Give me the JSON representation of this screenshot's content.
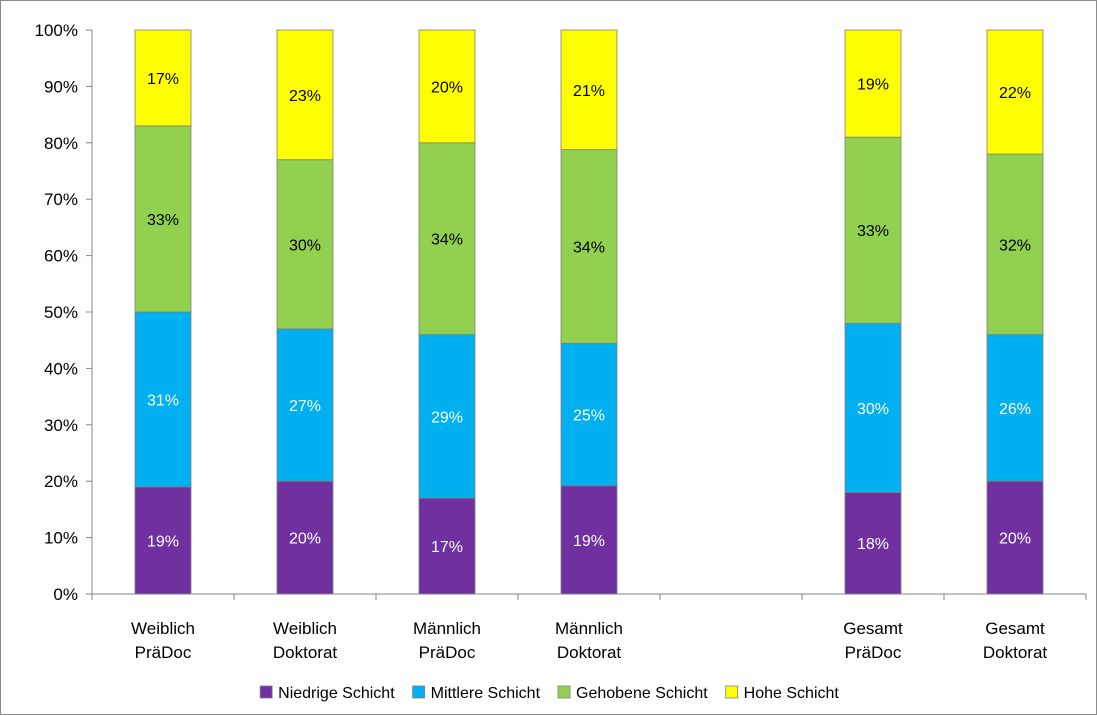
{
  "chart_data": {
    "type": "bar",
    "stacked": true,
    "percent_stacked": true,
    "categories": [
      [
        "Weiblich",
        "PräDoc"
      ],
      [
        "Weiblich",
        "Doktorat"
      ],
      [
        "Männlich",
        "PräDoc"
      ],
      [
        "Männlich",
        "Doktorat"
      ],
      [
        "",
        ""
      ],
      [
        "Gesamt",
        "PräDoc"
      ],
      [
        "Gesamt",
        "Doktorat"
      ]
    ],
    "series": [
      {
        "name": "Niedrige Schicht",
        "color": "#7030A0",
        "label_color": "#ffffff",
        "values": [
          19,
          20,
          17,
          19,
          null,
          18,
          20
        ],
        "labels": [
          "19%",
          "20%",
          "17%",
          "19%",
          "",
          "18%",
          "20%"
        ]
      },
      {
        "name": "Mittlere Schicht",
        "color": "#00B0F0",
        "label_color": "#ffffff",
        "values": [
          31,
          27,
          29,
          25,
          null,
          30,
          26
        ],
        "labels": [
          "31%",
          "27%",
          "29%",
          "25%",
          "",
          "30%",
          "26%"
        ]
      },
      {
        "name": "Gehobene Schicht",
        "color": "#92D050",
        "label_color": "#000000",
        "values": [
          33,
          30,
          34,
          34,
          null,
          33,
          32
        ],
        "labels": [
          "33%",
          "30%",
          "34%",
          "34%",
          "",
          "33%",
          "32%"
        ]
      },
      {
        "name": "Hohe Schicht",
        "color": "#FFFF00",
        "label_color": "#000000",
        "values": [
          17,
          23,
          20,
          21,
          null,
          19,
          22
        ],
        "labels": [
          "17%",
          "23%",
          "20%",
          "21%",
          "",
          "19%",
          "22%"
        ]
      }
    ],
    "y_ticks": [
      "0%",
      "10%",
      "20%",
      "30%",
      "40%",
      "50%",
      "60%",
      "70%",
      "80%",
      "90%",
      "100%"
    ],
    "ylim": [
      0,
      100
    ],
    "title": "",
    "xlabel": "",
    "ylabel": "",
    "grid": false,
    "legend_position": "bottom"
  }
}
